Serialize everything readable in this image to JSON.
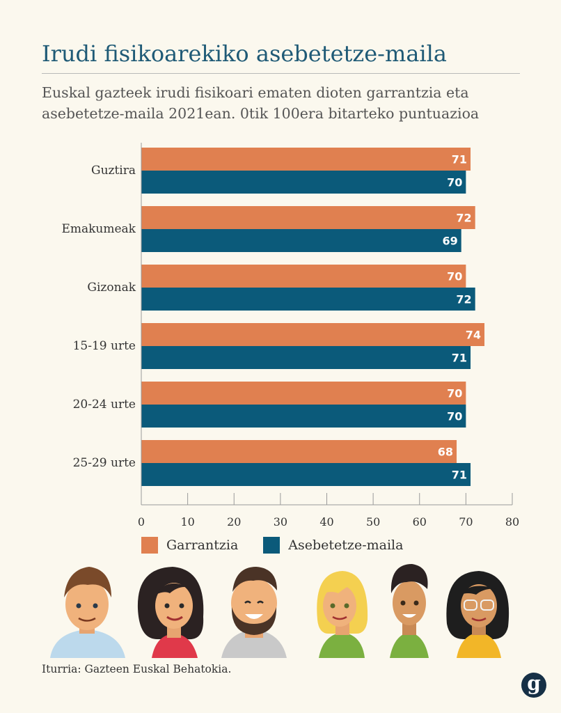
{
  "header": {
    "title": "Irudi fisikoarekiko asebetetze-maila",
    "subtitle": "Euskal gazteek irudi fisikoari ematen dioten garrantzia eta asebetetze-maila 2021ean. 0tik 100era bitarteko puntuazioa"
  },
  "chart_data": {
    "type": "bar",
    "orientation": "horizontal",
    "categories": [
      "Guztira",
      "Emakumeak",
      "Gizonak",
      "15-19 urte",
      "20-24 urte",
      "25-29 urte"
    ],
    "series": [
      {
        "name": "Garrantzia",
        "color": "#e08050",
        "values": [
          71,
          72,
          70,
          74,
          70,
          68
        ]
      },
      {
        "name": "Asebetetze-maila",
        "color": "#0b5a7a",
        "values": [
          70,
          69,
          72,
          71,
          70,
          71
        ]
      }
    ],
    "xlim": [
      0,
      80
    ],
    "xticks": [
      "0",
      "10",
      "20",
      "30",
      "40",
      "50",
      "60",
      "70",
      "80"
    ],
    "grid": false,
    "legend": "bottom-left",
    "data_labels": true
  },
  "footer": {
    "source": "Iturria: Gazteen Euskal Behatokia.",
    "logo": "g"
  },
  "decoration": {
    "icons": [
      "man-brown-hair-icon",
      "woman-dark-hair-icon",
      "man-beard-icon",
      "woman-blonde-icon",
      "young-man-icon",
      "woman-glasses-icon"
    ]
  }
}
